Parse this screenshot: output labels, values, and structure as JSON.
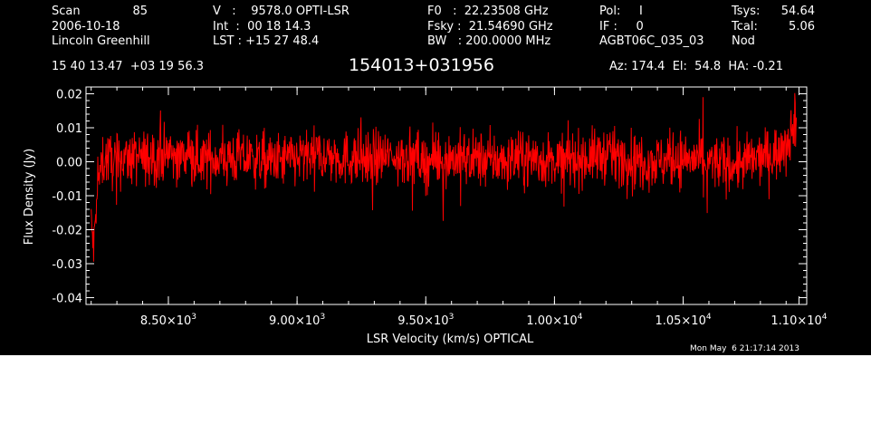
{
  "header": {
    "col1": {
      "scan_label": "Scan",
      "scan_value": "85",
      "date": "2006-10-18",
      "observer": "Lincoln Greenhill"
    },
    "col2": {
      "v_line": "V   :    9578.0 OPTI-LSR",
      "int_line": "Int  :  00 18 14.3",
      "lst_line": "LST : +15 27 48.4"
    },
    "col3": {
      "f0_line": "F0   :  22.23508 GHz",
      "fsky_line": "Fsky :  21.54690 GHz",
      "bw_line": "BW   : 200.0000 MHz"
    },
    "col4": {
      "pol_line": "Pol:     I",
      "if_line": "IF :     0",
      "project": "AGBT06C_035_03"
    },
    "col5": {
      "tsys_label": "Tsys:",
      "tsys_value": "54.64",
      "tcal_label": "Tcal:",
      "tcal_value": "5.06",
      "mode": "Nod"
    },
    "coords": "15 40 13.47  +03 19 56.3",
    "source": "154013+031956",
    "pointing": "Az: 174.4  El:  54.8  HA: -0.21",
    "timestamp": "Mon May  6 21:17:14 2013"
  },
  "colors": {
    "background": "#000000",
    "axes": "#ffffff",
    "series": "#ff0000",
    "page": "#ffffff"
  },
  "chart_data": {
    "type": "line",
    "title": "154013+031956",
    "xlabel": "LSR Velocity (km/s) OPTICAL",
    "ylabel": "Flux Density (Jy)",
    "xlim": [
      8180,
      10980
    ],
    "ylim": [
      -0.042,
      0.022
    ],
    "x_ticks": [
      {
        "value": 8500,
        "label": "8.50×10",
        "exp": "3"
      },
      {
        "value": 9000,
        "label": "9.00×10",
        "exp": "3"
      },
      {
        "value": 9500,
        "label": "9.50×10",
        "exp": "3"
      },
      {
        "value": 10000,
        "label": "1.00×10",
        "exp": "4"
      },
      {
        "value": 10500,
        "label": "1.05×10",
        "exp": "4"
      },
      {
        "value": 10950,
        "label": "1.10×10",
        "exp": "4"
      }
    ],
    "y_ticks": [
      {
        "value": 0.02,
        "label": "0.02"
      },
      {
        "value": 0.01,
        "label": "0.01"
      },
      {
        "value": 0.0,
        "label": "0.00"
      },
      {
        "value": -0.01,
        "label": "-0.01"
      },
      {
        "value": -0.02,
        "label": "-0.02"
      },
      {
        "value": -0.03,
        "label": "-0.03"
      },
      {
        "value": -0.04,
        "label": "-0.04"
      }
    ],
    "series": [
      {
        "color": "#ff0000",
        "x": [
          8200,
          8210,
          8220,
          8230,
          8240,
          8260,
          8290,
          8330,
          8400,
          8500,
          8600,
          8700,
          8800,
          8900,
          9000,
          9100,
          9200,
          9300,
          9400,
          9500,
          9600,
          9700,
          9800,
          9900,
          10000,
          10100,
          10200,
          10300,
          10400,
          10500,
          10600,
          10700,
          10800,
          10850,
          10880,
          10900,
          10920,
          10940
        ],
        "y": [
          -0.018,
          -0.026,
          -0.012,
          -0.005,
          0.0,
          0.001,
          0.0,
          0.001,
          0.001,
          0.002,
          0.001,
          0.001,
          0.001,
          0.0,
          0.001,
          0.002,
          0.001,
          0.001,
          0.002,
          0.0,
          0.001,
          0.001,
          0.0,
          0.001,
          0.0,
          0.001,
          0.002,
          0.001,
          0.0,
          0.001,
          0.0,
          -0.001,
          0.001,
          0.002,
          0.004,
          0.007,
          0.009,
          0.012
        ],
        "noise_rms_jy": 0.004,
        "noise_peak_jy": 0.012
      }
    ],
    "grid": false,
    "legend": "none"
  }
}
